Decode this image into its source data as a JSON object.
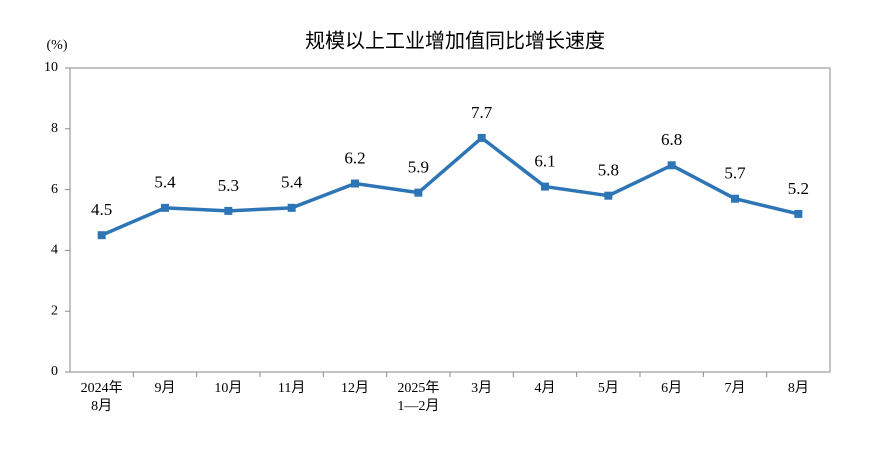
{
  "chart_data": {
    "type": "line",
    "title": "规模以上工业增加值同比增长速度",
    "y_label": "(%)",
    "categories": [
      "2024年\n8月",
      "9月",
      "10月",
      "11月",
      "12月",
      "2025年\n1—2月",
      "3月",
      "4月",
      "5月",
      "6月",
      "7月",
      "8月"
    ],
    "series": [
      {
        "name": "规模以上工业增加值同比增长速度",
        "color": "#2e75b6",
        "values": [
          4.5,
          5.4,
          5.3,
          5.4,
          6.2,
          5.9,
          7.7,
          6.1,
          5.8,
          6.8,
          5.7,
          5.2
        ]
      }
    ],
    "ylim": [
      0,
      10
    ],
    "yticks": [
      0,
      2,
      4,
      6,
      8,
      10
    ]
  }
}
